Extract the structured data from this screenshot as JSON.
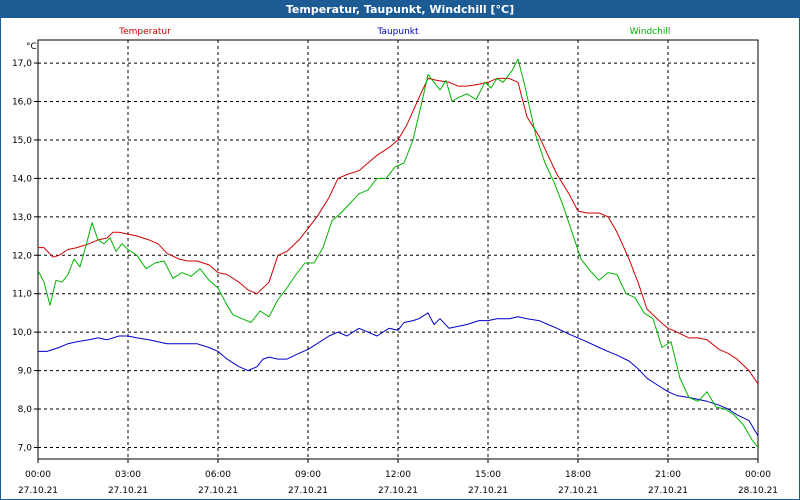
{
  "window": {
    "title": "Temperatur, Taupunkt, Windchill [°C]"
  },
  "chart_data": {
    "type": "line",
    "title": "Temperatur, Taupunkt, Windchill [°C]",
    "ylabel": "°C",
    "xlabel": "",
    "ylim": [
      6.7,
      17.6
    ],
    "xlim": [
      0,
      24
    ],
    "grid": true,
    "legend_placement": "top",
    "y_ticks": [
      "7,0",
      "8,0",
      "9,0",
      "10,0",
      "11,0",
      "12,0",
      "13,0",
      "14,0",
      "15,0",
      "16,0",
      "17,0"
    ],
    "y_tick_values": [
      7,
      8,
      9,
      10,
      11,
      12,
      13,
      14,
      15,
      16,
      17
    ],
    "x_ticks": [
      {
        "t": 0,
        "time": "00:00",
        "date": "27.10.21"
      },
      {
        "t": 3,
        "time": "03:00",
        "date": "27.10.21"
      },
      {
        "t": 6,
        "time": "06:00",
        "date": "27.10.21"
      },
      {
        "t": 9,
        "time": "09:00",
        "date": "27.10.21"
      },
      {
        "t": 12,
        "time": "12:00",
        "date": "27.10.21"
      },
      {
        "t": 15,
        "time": "15:00",
        "date": "27.10.21"
      },
      {
        "t": 18,
        "time": "18:00",
        "date": "27.10.21"
      },
      {
        "t": 21,
        "time": "21:00",
        "date": "27.10.21"
      },
      {
        "t": 24,
        "time": "00:00",
        "date": "28.10.21"
      }
    ],
    "series": [
      {
        "name": "Temperatur",
        "color": "#d00000",
        "x": [
          0,
          0.2,
          0.5,
          0.7,
          1.0,
          1.3,
          1.7,
          2.0,
          2.3,
          2.5,
          2.7,
          3.0,
          3.3,
          3.7,
          4.0,
          4.3,
          4.7,
          5.0,
          5.3,
          5.7,
          6.0,
          6.3,
          6.7,
          7.0,
          7.3,
          7.7,
          8.0,
          8.3,
          8.7,
          9.0,
          9.3,
          9.7,
          10.0,
          10.3,
          10.7,
          11.0,
          11.3,
          11.7,
          12.0,
          12.3,
          12.7,
          13.0,
          13.3,
          13.7,
          14.0,
          14.3,
          14.7,
          15.0,
          15.3,
          15.7,
          16.0,
          16.3,
          16.7,
          17.0,
          17.3,
          17.7,
          18.0,
          18.3,
          18.7,
          19.0,
          19.3,
          19.7,
          20.0,
          20.3,
          20.7,
          21.0,
          21.3,
          21.7,
          22.0,
          22.3,
          22.7,
          23.0,
          23.3,
          23.7,
          24.0
        ],
        "values": [
          12.2,
          12.2,
          11.95,
          12.0,
          12.15,
          12.2,
          12.3,
          12.4,
          12.45,
          12.6,
          12.6,
          12.55,
          12.5,
          12.4,
          12.3,
          12.05,
          11.9,
          11.85,
          11.85,
          11.75,
          11.55,
          11.5,
          11.3,
          11.1,
          11.0,
          11.3,
          12.0,
          12.1,
          12.4,
          12.7,
          13.0,
          13.5,
          14.0,
          14.1,
          14.2,
          14.4,
          14.6,
          14.8,
          15.0,
          15.4,
          16.1,
          16.6,
          16.55,
          16.5,
          16.4,
          16.4,
          16.45,
          16.5,
          16.6,
          16.6,
          16.5,
          15.6,
          15.1,
          14.6,
          14.1,
          13.6,
          13.15,
          13.1,
          13.1,
          13.0,
          12.6,
          11.9,
          11.3,
          10.6,
          10.3,
          10.1,
          10.0,
          9.85,
          9.85,
          9.8,
          9.55,
          9.45,
          9.3,
          9.0,
          8.65
        ]
      },
      {
        "name": "Taupunkt",
        "color": "#0000c8",
        "x": [
          0,
          0.3,
          0.7,
          1.0,
          1.3,
          1.7,
          2.0,
          2.3,
          2.7,
          3.0,
          3.3,
          3.7,
          4.0,
          4.3,
          4.7,
          5.0,
          5.3,
          5.7,
          6.0,
          6.3,
          6.7,
          7.0,
          7.3,
          7.5,
          7.7,
          8.0,
          8.3,
          8.7,
          9.0,
          9.3,
          9.7,
          10.0,
          10.3,
          10.7,
          11.0,
          11.3,
          11.7,
          12.0,
          12.2,
          12.5,
          12.7,
          13.0,
          13.2,
          13.4,
          13.7,
          14.0,
          14.3,
          14.7,
          15.0,
          15.3,
          15.7,
          16.0,
          16.3,
          16.7,
          17.0,
          17.3,
          17.7,
          18.0,
          18.3,
          18.7,
          19.0,
          19.3,
          19.7,
          20.0,
          20.3,
          20.7,
          21.0,
          21.3,
          21.7,
          22.0,
          22.3,
          22.7,
          23.0,
          23.3,
          23.7,
          24.0
        ],
        "values": [
          9.5,
          9.5,
          9.6,
          9.7,
          9.75,
          9.8,
          9.85,
          9.8,
          9.9,
          9.9,
          9.85,
          9.8,
          9.75,
          9.7,
          9.7,
          9.7,
          9.7,
          9.6,
          9.5,
          9.3,
          9.1,
          9.0,
          9.1,
          9.3,
          9.35,
          9.3,
          9.3,
          9.45,
          9.55,
          9.7,
          9.9,
          10.0,
          9.9,
          10.1,
          10.0,
          9.9,
          10.1,
          10.05,
          10.25,
          10.3,
          10.35,
          10.5,
          10.2,
          10.35,
          10.1,
          10.15,
          10.2,
          10.3,
          10.3,
          10.35,
          10.35,
          10.4,
          10.35,
          10.3,
          10.2,
          10.1,
          9.95,
          9.85,
          9.75,
          9.6,
          9.5,
          9.4,
          9.25,
          9.05,
          8.8,
          8.6,
          8.45,
          8.35,
          8.3,
          8.25,
          8.2,
          8.1,
          8.0,
          7.85,
          7.7,
          7.3
        ]
      },
      {
        "name": "Windchill",
        "color": "#00b400",
        "x": [
          0,
          0.2,
          0.4,
          0.6,
          0.8,
          1.0,
          1.2,
          1.4,
          1.6,
          1.8,
          2.0,
          2.2,
          2.4,
          2.6,
          2.8,
          3.0,
          3.3,
          3.6,
          3.9,
          4.2,
          4.5,
          4.8,
          5.1,
          5.4,
          5.7,
          6.0,
          6.3,
          6.5,
          6.8,
          7.1,
          7.4,
          7.7,
          8.0,
          8.3,
          8.6,
          8.9,
          9.2,
          9.5,
          9.8,
          10.1,
          10.4,
          10.7,
          11.0,
          11.3,
          11.6,
          11.9,
          12.2,
          12.5,
          12.8,
          13.0,
          13.2,
          13.4,
          13.6,
          13.8,
          14.0,
          14.3,
          14.6,
          14.9,
          15.1,
          15.3,
          15.5,
          15.8,
          16.0,
          16.2,
          16.4,
          16.6,
          16.9,
          17.2,
          17.5,
          17.8,
          18.1,
          18.4,
          18.7,
          19.0,
          19.3,
          19.6,
          19.9,
          20.2,
          20.5,
          20.8,
          21.1,
          21.4,
          21.7,
          22.0,
          22.3,
          22.6,
          22.9,
          23.2,
          23.5,
          23.8,
          24.0
        ],
        "values": [
          11.6,
          11.3,
          10.7,
          11.35,
          11.3,
          11.5,
          11.9,
          11.7,
          12.25,
          12.85,
          12.4,
          12.3,
          12.45,
          12.1,
          12.3,
          12.15,
          12.0,
          11.65,
          11.8,
          11.85,
          11.4,
          11.55,
          11.45,
          11.65,
          11.35,
          11.15,
          10.7,
          10.45,
          10.35,
          10.25,
          10.55,
          10.4,
          10.85,
          11.15,
          11.5,
          11.8,
          11.8,
          12.2,
          12.9,
          13.1,
          13.35,
          13.6,
          13.7,
          14.0,
          14.0,
          14.3,
          14.4,
          15.0,
          16.0,
          16.7,
          16.5,
          16.3,
          16.55,
          16.0,
          16.1,
          16.2,
          16.05,
          16.5,
          16.35,
          16.6,
          16.5,
          16.8,
          17.1,
          16.5,
          15.8,
          15.1,
          14.4,
          13.9,
          13.3,
          12.6,
          11.9,
          11.6,
          11.35,
          11.55,
          11.5,
          11.0,
          10.9,
          10.5,
          10.35,
          9.6,
          9.75,
          8.8,
          8.3,
          8.2,
          8.45,
          8.05,
          8.0,
          7.85,
          7.6,
          7.2,
          7.0
        ]
      }
    ]
  }
}
